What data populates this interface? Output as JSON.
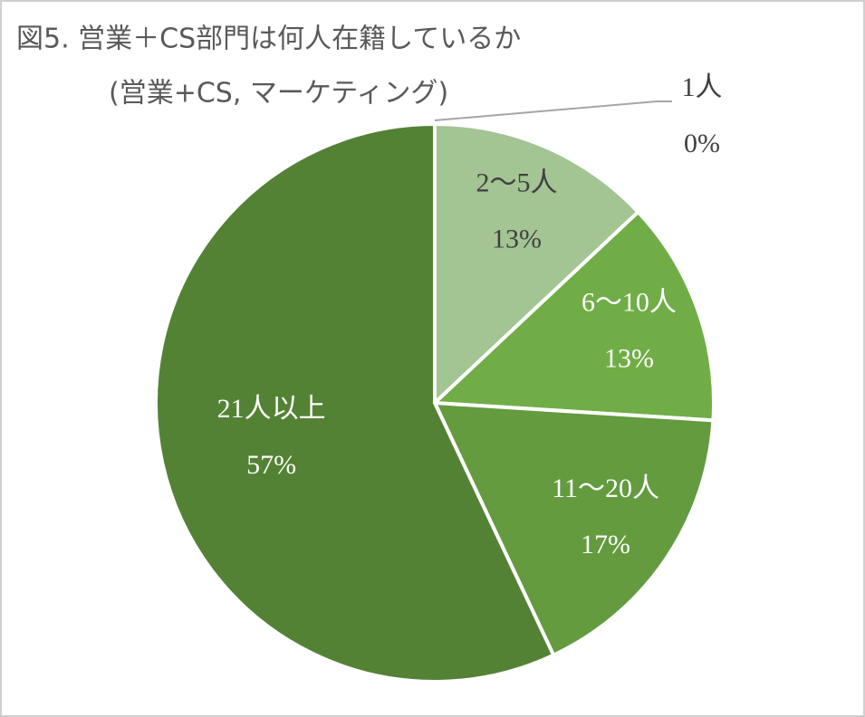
{
  "chart_data": {
    "type": "pie",
    "title": "図5. 営業＋CS部門は何人在籍しているか",
    "subtitle": "(営業+CS, マーケティング)",
    "categories": [
      "1人",
      "2〜5人",
      "6〜10人",
      "11〜20人",
      "21人以上"
    ],
    "values": [
      0,
      13,
      13,
      17,
      57
    ],
    "value_labels": [
      "0%",
      "13%",
      "13%",
      "17%",
      "57%"
    ],
    "colors": [
      "#c5e0b4",
      "#a3c493",
      "#70ad47",
      "#639b3e",
      "#548235"
    ]
  }
}
